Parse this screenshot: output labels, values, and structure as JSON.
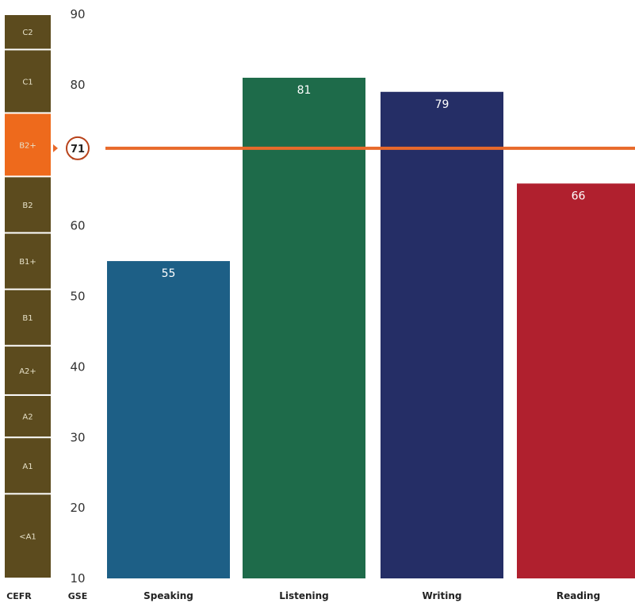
{
  "chart_data": {
    "type": "bar",
    "y_axis_title": "GSE",
    "cefr_axis_title": "CEFR",
    "ylim": [
      10,
      90
    ],
    "yticks": [
      10,
      20,
      30,
      40,
      50,
      60,
      70,
      80,
      90
    ],
    "categories": [
      "Speaking",
      "Listening",
      "Writing",
      "Reading"
    ],
    "values": [
      55,
      81,
      79,
      66
    ],
    "bar_colors": [
      "#1d5f86",
      "#1e6b4a",
      "#252e66",
      "#b0202e"
    ],
    "bar_labels": [
      "55",
      "81",
      "79",
      "66"
    ],
    "overall_score": 71,
    "overall_label": "71",
    "marker_color": "#e8692a",
    "cefr_levels": [
      {
        "label": "<A1",
        "from": 10,
        "to": 22,
        "highlight": false
      },
      {
        "label": "A1",
        "from": 22,
        "to": 30,
        "highlight": false
      },
      {
        "label": "A2",
        "from": 30,
        "to": 36,
        "highlight": false
      },
      {
        "label": "A2+",
        "from": 36,
        "to": 43,
        "highlight": false
      },
      {
        "label": "B1",
        "from": 43,
        "to": 51,
        "highlight": false
      },
      {
        "label": "B1+",
        "from": 51,
        "to": 59,
        "highlight": false
      },
      {
        "label": "B2",
        "from": 59,
        "to": 67,
        "highlight": false
      },
      {
        "label": "B2+",
        "from": 67,
        "to": 76,
        "highlight": true
      },
      {
        "label": "C1",
        "from": 76,
        "to": 85,
        "highlight": false
      },
      {
        "label": "C2",
        "from": 85,
        "to": 90,
        "highlight": false
      }
    ],
    "cefr_color": "#5c4b1e",
    "cefr_highlight_color": "#ee6a1c",
    "grid": false
  }
}
